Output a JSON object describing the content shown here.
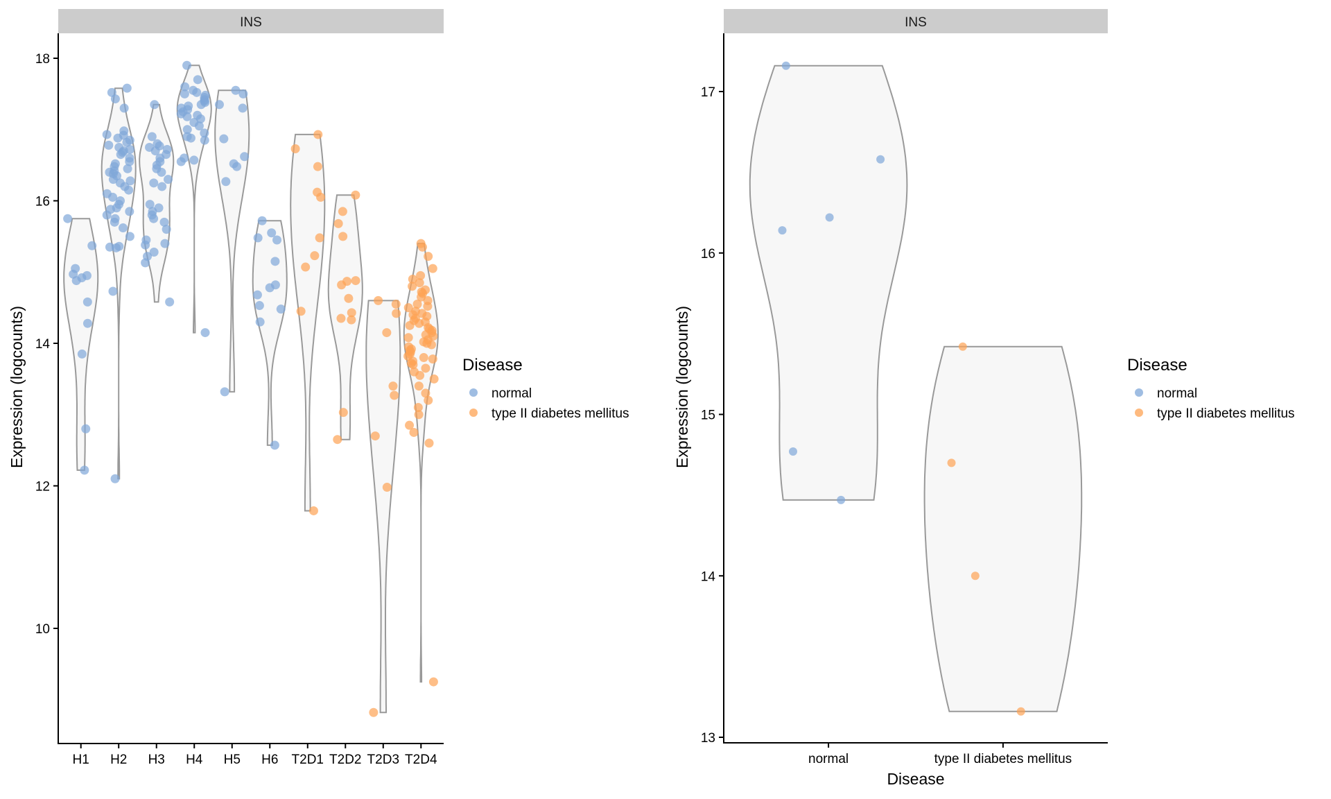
{
  "chart_data": [
    {
      "type": "violin",
      "strip_title": "INS",
      "xlabel": "",
      "ylabel": "Expression (logcounts)",
      "ylim": [
        8.6,
        18.4
      ],
      "yticks": [
        10,
        12,
        14,
        16,
        18
      ],
      "categories": [
        "H1",
        "H2",
        "H3",
        "H4",
        "H5",
        "H6",
        "T2D1",
        "T2D2",
        "T2D3",
        "T2D4"
      ],
      "category_disease": [
        "normal",
        "normal",
        "normal",
        "normal",
        "normal",
        "normal",
        "type II diabetes mellitus",
        "type II diabetes mellitus",
        "type II diabetes mellitus",
        "type II diabetes mellitus"
      ],
      "values": [
        [
          15.75,
          15.37,
          15.05,
          14.97,
          14.95,
          14.92,
          14.88,
          14.58,
          14.28,
          13.85,
          12.8,
          12.22
        ],
        [
          17.58,
          17.52,
          17.43,
          17.3,
          16.98,
          16.93,
          16.92,
          16.88,
          16.85,
          16.82,
          16.78,
          16.75,
          16.72,
          16.7,
          16.68,
          16.65,
          16.6,
          16.55,
          16.52,
          16.48,
          16.45,
          16.42,
          16.4,
          16.38,
          16.35,
          16.3,
          16.28,
          16.25,
          16.2,
          16.15,
          16.1,
          16.05,
          16.0,
          15.95,
          15.9,
          15.88,
          15.85,
          15.8,
          15.75,
          15.7,
          15.62,
          15.5,
          15.36,
          15.35,
          15.34,
          14.73,
          12.1
        ],
        [
          17.35,
          16.9,
          16.8,
          16.77,
          16.75,
          16.72,
          16.7,
          16.65,
          16.6,
          16.55,
          16.5,
          16.45,
          16.4,
          16.3,
          16.25,
          16.2,
          15.95,
          15.9,
          15.85,
          15.8,
          15.75,
          15.7,
          15.6,
          15.45,
          15.4,
          15.38,
          15.28,
          15.22,
          15.13,
          14.58
        ],
        [
          17.9,
          17.7,
          17.6,
          17.55,
          17.52,
          17.5,
          17.48,
          17.45,
          17.42,
          17.4,
          17.38,
          17.35,
          17.33,
          17.3,
          17.28,
          17.25,
          17.22,
          17.2,
          17.18,
          17.15,
          17.1,
          17.05,
          17.0,
          16.95,
          16.9,
          16.88,
          16.85,
          16.6,
          16.57,
          16.55,
          14.15
        ],
        [
          17.55,
          17.5,
          17.35,
          17.3,
          16.87,
          16.62,
          16.52,
          16.48,
          16.27,
          13.32
        ],
        [
          15.72,
          15.55,
          15.48,
          15.45,
          15.15,
          14.82,
          14.78,
          14.68,
          14.53,
          14.48,
          14.3,
          12.57
        ],
        [
          16.93,
          16.73,
          16.48,
          16.12,
          16.05,
          15.48,
          15.23,
          15.07,
          14.45,
          11.65
        ],
        [
          16.08,
          15.85,
          15.68,
          15.5,
          14.88,
          14.87,
          14.82,
          14.63,
          14.43,
          14.35,
          14.33,
          13.03,
          12.65
        ],
        [
          14.6,
          14.55,
          14.42,
          14.15,
          13.4,
          13.27,
          12.7,
          11.98,
          8.82
        ],
        [
          15.4,
          15.35,
          15.22,
          15.05,
          14.95,
          14.9,
          14.85,
          14.8,
          14.75,
          14.72,
          14.7,
          14.65,
          14.6,
          14.55,
          14.52,
          14.5,
          14.45,
          14.42,
          14.4,
          14.38,
          14.35,
          14.32,
          14.3,
          14.28,
          14.25,
          14.22,
          14.2,
          14.18,
          14.15,
          14.12,
          14.1,
          14.08,
          14.05,
          14.02,
          14.0,
          13.98,
          13.95,
          13.92,
          13.9,
          13.88,
          13.85,
          13.82,
          13.8,
          13.78,
          13.75,
          13.72,
          13.7,
          13.65,
          13.6,
          13.55,
          13.5,
          13.4,
          13.3,
          13.2,
          13.1,
          13.0,
          12.85,
          12.75,
          12.6,
          9.25
        ]
      ],
      "legend": {
        "title": "Disease",
        "position": "right",
        "entries": [
          "normal",
          "type II diabetes mellitus"
        ]
      }
    },
    {
      "type": "violin",
      "strip_title": "INS",
      "xlabel": "Disease",
      "ylabel": "Expression (logcounts)",
      "ylim": [
        12.95,
        17.3
      ],
      "yticks": [
        13,
        14,
        15,
        16,
        17
      ],
      "categories": [
        "normal",
        "type II diabetes mellitus"
      ],
      "category_disease": [
        "normal",
        "type II diabetes mellitus"
      ],
      "values": [
        [
          17.16,
          16.58,
          16.22,
          16.14,
          14.77,
          14.47
        ],
        [
          15.42,
          14.7,
          14.0,
          13.16
        ]
      ],
      "legend": {
        "title": "Disease",
        "position": "right",
        "entries": [
          "normal",
          "type II diabetes mellitus"
        ]
      }
    }
  ],
  "colors": {
    "normal": "#7fa7d8",
    "type II diabetes mellitus": "#fda354",
    "violin_fill": "#f7f7f7",
    "violin_stroke": "#999999",
    "strip_bg": "#cccccc"
  }
}
